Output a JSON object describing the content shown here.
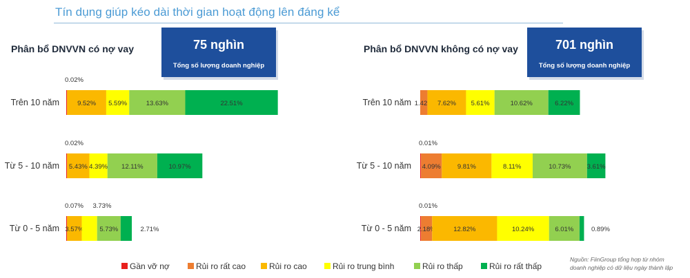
{
  "page_title": "Tín dụng giúp kéo dài thời gian hoạt động lên đáng kể",
  "source_note": [
    "Nguồn: FiinGroup tổng hợp từ nhóm",
    "doanh nghiệp có dữ liệu ngày thành lập"
  ],
  "colors": {
    "title": "#4a9ad4",
    "box": "#1e4f9c",
    "Gần vỡ nợ": "#e8201c",
    "Rủi ro rất cao": "#ed7d31",
    "Rủi ro cao": "#fbb800",
    "Rủi ro trung bình": "#ffff00",
    "Rủi ro thấp": "#92d050",
    "Rủi ro rất thấp": "#00b050"
  },
  "chart_data": [
    {
      "type": "bar",
      "orientation": "horizontal",
      "stacked": true,
      "title": "Phân bổ DNVVN có nợ vay",
      "summary_box": {
        "value": "75 nghìn",
        "caption": "Tổng số lượng doanh nghiệp"
      },
      "categories": [
        "Trên 10 năm",
        "Từ 5 - 10 năm",
        "Từ 0 - 5 năm"
      ],
      "series": [
        {
          "name": "Gần vỡ nợ",
          "values": [
            0.02,
            0.02,
            0.07
          ]
        },
        {
          "name": "Rủi ro rất cao",
          "values": [
            0,
            0,
            0
          ]
        },
        {
          "name": "Rủi ro cao",
          "values": [
            9.52,
            5.43,
            3.57
          ]
        },
        {
          "name": "Rủi ro trung bình",
          "values": [
            5.59,
            4.39,
            3.73
          ]
        },
        {
          "name": "Rủi ro thấp",
          "values": [
            13.63,
            12.11,
            5.73
          ]
        },
        {
          "name": "Rủi ro rất thấp",
          "values": [
            22.51,
            10.97,
            2.71
          ]
        }
      ],
      "labels": [
        [
          "0.02%",
          "",
          "9.52%",
          "5.59%",
          "13.63%",
          "22.51%"
        ],
        [
          "0.02%",
          "",
          "5.43%",
          "4.39%",
          "12.11%",
          "10.97%"
        ],
        [
          "0.07%",
          "",
          "3.57%",
          "3.73%",
          "5.73%",
          "2.71%"
        ]
      ]
    },
    {
      "type": "bar",
      "orientation": "horizontal",
      "stacked": true,
      "title": "Phân bổ DNVVN không có nợ vay",
      "summary_box": {
        "value": "701 nghìn",
        "caption": "Tổng số lượng doanh nghiệp"
      },
      "categories": [
        "Trên 10 năm",
        "Từ 5 - 10 năm",
        "Từ 0 - 5 năm"
      ],
      "series": [
        {
          "name": "Gần vỡ nợ",
          "values": [
            0,
            0.01,
            0.01
          ]
        },
        {
          "name": "Rủi ro rất cao",
          "values": [
            1.42,
            4.09,
            2.18
          ]
        },
        {
          "name": "Rủi ro cao",
          "values": [
            7.62,
            9.81,
            12.82
          ]
        },
        {
          "name": "Rủi ro trung bình",
          "values": [
            5.61,
            8.11,
            10.24
          ]
        },
        {
          "name": "Rủi ro thấp",
          "values": [
            10.62,
            10.73,
            6.01
          ]
        },
        {
          "name": "Rủi ro rất thấp",
          "values": [
            6.22,
            3.61,
            0.89
          ]
        }
      ],
      "labels": [
        [
          "",
          "1.42%",
          "7.62%",
          "5.61%",
          "10.62%",
          "6.22%"
        ],
        [
          "0.01%",
          "4.09%",
          "9.81%",
          "8.11%",
          "10.73%",
          "3.61%"
        ],
        [
          "0.01%",
          "2.18%",
          "12.82%",
          "10.24%",
          "6.01%",
          "0.89%"
        ]
      ]
    }
  ],
  "legend": [
    "Gần vỡ nợ",
    "Rủi ro rất cao",
    "Rủi ro cao",
    "Rủi ro trung bình",
    "Rủi ro thấp",
    "Rủi ro rất thấp"
  ]
}
